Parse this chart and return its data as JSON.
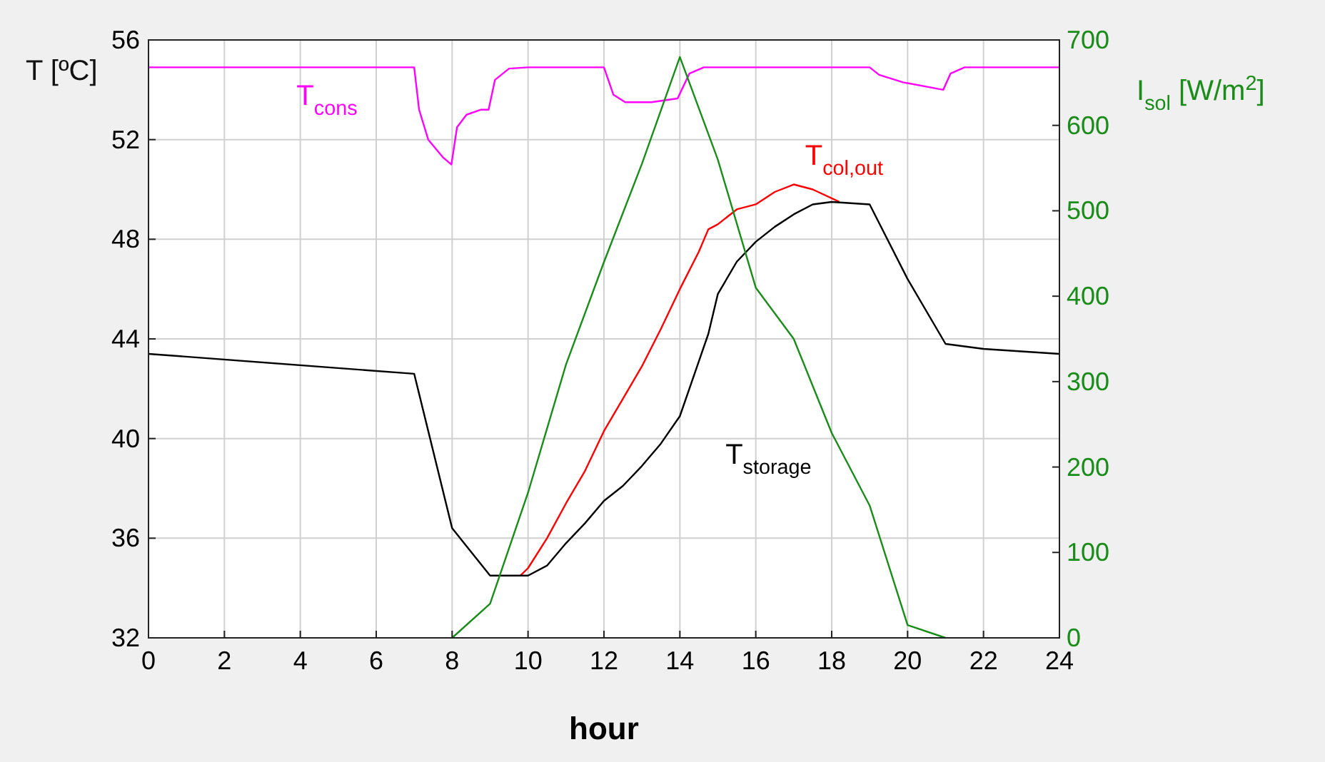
{
  "chart_data": {
    "type": "line",
    "xlabel": "hour",
    "ylabel": "T [ºC]",
    "y2label": "I$_{sol}$ [W/m$^{2}$]",
    "xlim": [
      0,
      24
    ],
    "xticks": [
      0,
      2,
      4,
      6,
      8,
      10,
      12,
      14,
      16,
      18,
      20,
      22,
      24
    ],
    "ylim": [
      32,
      56
    ],
    "yticks": [
      32,
      36,
      40,
      44,
      48,
      52,
      56
    ],
    "y2lim": [
      0,
      700
    ],
    "y2ticks": [
      0,
      100,
      200,
      300,
      400,
      500,
      600,
      700
    ],
    "grid": true,
    "line_style": "solid",
    "series": [
      {
        "name": "T$_{cons}$",
        "color": "#ff00ff",
        "x": [
          0,
          7,
          7.13,
          7.37,
          7.75,
          7.98,
          8.13,
          8.38,
          8.75,
          8.96,
          9.13,
          9.5,
          10,
          12,
          12.25,
          12.56,
          13.25,
          13.94,
          14.25,
          14.63,
          19,
          19.25,
          19.88,
          20.94,
          21.13,
          21.5,
          24
        ],
        "values": [
          54.9,
          54.9,
          53.2,
          52,
          51.3,
          51,
          52.5,
          53,
          53.2,
          53.2,
          54.4,
          54.85,
          54.9,
          54.9,
          53.8,
          53.5,
          53.5,
          53.65,
          54.65,
          54.9,
          54.9,
          54.6,
          54.3,
          54,
          54.65,
          54.9,
          54.9
        ]
      },
      {
        "name": "T$_{col,out}$",
        "color": "#ff0000",
        "x": [
          9.8,
          10,
          10.5,
          11,
          11.5,
          12,
          12.5,
          13,
          13.5,
          14,
          14.5,
          14.75,
          15,
          15.5,
          16,
          16.5,
          17,
          17.5,
          18.2
        ],
        "values": [
          34.5,
          34.8,
          36,
          37.4,
          38.7,
          40.3,
          41.6,
          42.9,
          44.4,
          46,
          47.5,
          48.4,
          48.6,
          49.2,
          49.4,
          49.9,
          50.2,
          50,
          49.5
        ]
      },
      {
        "name": "T$_{storage}$",
        "color": "#000000",
        "x": [
          0,
          7,
          8,
          9,
          9.8,
          10,
          10.5,
          11,
          11.5,
          12,
          12.5,
          13,
          13.5,
          14,
          14.5,
          14.75,
          15,
          15.5,
          16,
          16.5,
          17,
          17.5,
          18,
          19,
          20,
          21,
          22,
          24
        ],
        "values": [
          43.4,
          42.6,
          36.4,
          34.5,
          34.5,
          34.5,
          34.9,
          35.8,
          36.6,
          37.5,
          38.1,
          38.9,
          39.8,
          40.9,
          43.1,
          44.2,
          45.8,
          47.1,
          47.9,
          48.5,
          49,
          49.4,
          49.5,
          49.4,
          46.4,
          43.8,
          43.6,
          43.4
        ]
      },
      {
        "color": "#1a8c1a",
        "axis": "y2",
        "x": [
          8,
          9,
          10,
          11,
          12,
          13,
          14,
          15,
          16,
          17,
          18,
          19,
          20,
          21
        ],
        "values": [
          0,
          40,
          170,
          320,
          440,
          555,
          680,
          560,
          410,
          350,
          240,
          155,
          15,
          0
        ]
      }
    ]
  }
}
